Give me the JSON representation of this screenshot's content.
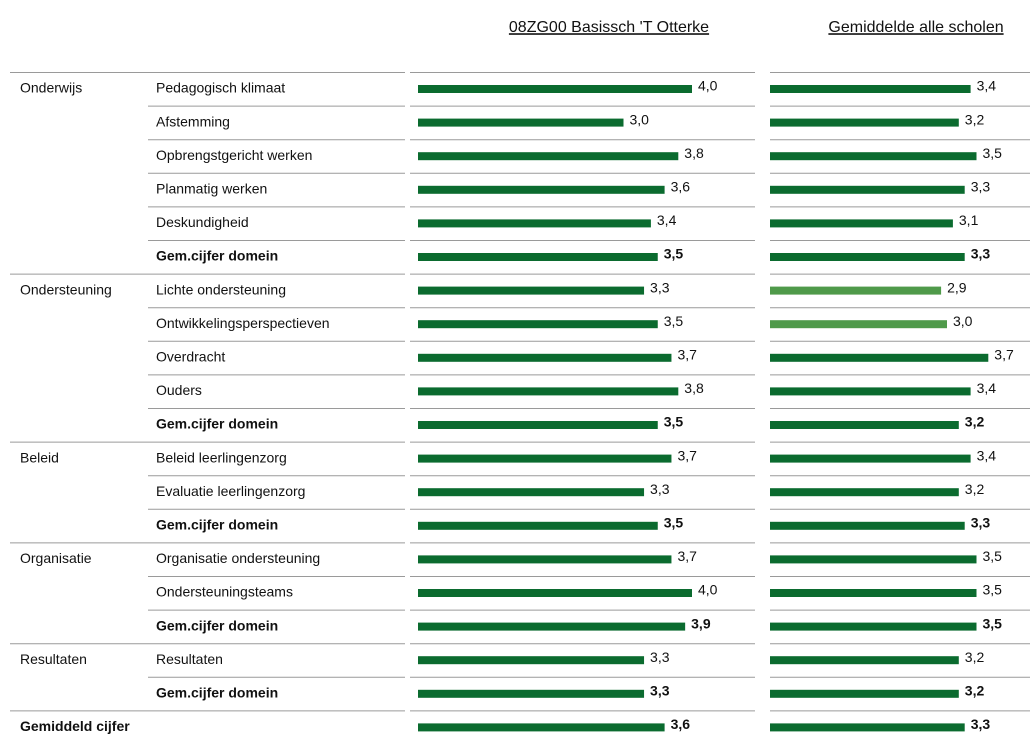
{
  "header": {
    "school_title": "08ZG00 Basissch 'T Otterke",
    "average_title": "Gemiddelde alle scholen"
  },
  "school_color": "#0b6b2f",
  "rows": [
    {
      "domain": "Onderwijs",
      "label": "Pedagogisch klimaat",
      "school": 4.0,
      "school_label": "4,0",
      "average": 3.4,
      "average_label": "3,4",
      "average_color": "#0b6b2f",
      "bold": false
    },
    {
      "domain": null,
      "label": "Afstemming",
      "school": 3.0,
      "school_label": "3,0",
      "average": 3.2,
      "average_label": "3,2",
      "average_color": "#0b6b2f",
      "bold": false
    },
    {
      "domain": null,
      "label": "Opbrengstgericht werken",
      "school": 3.8,
      "school_label": "3,8",
      "average": 3.5,
      "average_label": "3,5",
      "average_color": "#0b6b2f",
      "bold": false
    },
    {
      "domain": null,
      "label": "Planmatig werken",
      "school": 3.6,
      "school_label": "3,6",
      "average": 3.3,
      "average_label": "3,3",
      "average_color": "#0b6b2f",
      "bold": false
    },
    {
      "domain": null,
      "label": "Deskundigheid",
      "school": 3.4,
      "school_label": "3,4",
      "average": 3.1,
      "average_label": "3,1",
      "average_color": "#0b6b2f",
      "bold": false
    },
    {
      "domain": null,
      "label": "Gem.cijfer domein",
      "school": 3.5,
      "school_label": "3,5",
      "average": 3.3,
      "average_label": "3,3",
      "average_color": "#0b6b2f",
      "bold": true
    },
    {
      "domain": "Ondersteuning",
      "label": "Lichte ondersteuning",
      "school": 3.3,
      "school_label": "3,3",
      "average": 2.9,
      "average_label": "2,9",
      "average_color": "#4f9a4a",
      "bold": false
    },
    {
      "domain": null,
      "label": "Ontwikkelingsperspectieven",
      "school": 3.5,
      "school_label": "3,5",
      "average": 3.0,
      "average_label": "3,0",
      "average_color": "#4f9a4a",
      "bold": false
    },
    {
      "domain": null,
      "label": "Overdracht",
      "school": 3.7,
      "school_label": "3,7",
      "average": 3.7,
      "average_label": "3,7",
      "average_color": "#0b6b2f",
      "bold": false
    },
    {
      "domain": null,
      "label": "Ouders",
      "school": 3.8,
      "school_label": "3,8",
      "average": 3.4,
      "average_label": "3,4",
      "average_color": "#0b6b2f",
      "bold": false
    },
    {
      "domain": null,
      "label": "Gem.cijfer domein",
      "school": 3.5,
      "school_label": "3,5",
      "average": 3.2,
      "average_label": "3,2",
      "average_color": "#0b6b2f",
      "bold": true
    },
    {
      "domain": "Beleid",
      "label": "Beleid leerlingenzorg",
      "school": 3.7,
      "school_label": "3,7",
      "average": 3.4,
      "average_label": "3,4",
      "average_color": "#0b6b2f",
      "bold": false
    },
    {
      "domain": null,
      "label": "Evaluatie leerlingenzorg",
      "school": 3.3,
      "school_label": "3,3",
      "average": 3.2,
      "average_label": "3,2",
      "average_color": "#0b6b2f",
      "bold": false
    },
    {
      "domain": null,
      "label": "Gem.cijfer domein",
      "school": 3.5,
      "school_label": "3,5",
      "average": 3.3,
      "average_label": "3,3",
      "average_color": "#0b6b2f",
      "bold": true
    },
    {
      "domain": "Organisatie",
      "label": "Organisatie ondersteuning",
      "school": 3.7,
      "school_label": "3,7",
      "average": 3.5,
      "average_label": "3,5",
      "average_color": "#0b6b2f",
      "bold": false
    },
    {
      "domain": null,
      "label": "Ondersteuningsteams",
      "school": 4.0,
      "school_label": "4,0",
      "average": 3.5,
      "average_label": "3,5",
      "average_color": "#0b6b2f",
      "bold": false
    },
    {
      "domain": null,
      "label": "Gem.cijfer domein",
      "school": 3.9,
      "school_label": "3,9",
      "average": 3.5,
      "average_label": "3,5",
      "average_color": "#0b6b2f",
      "bold": true
    },
    {
      "domain": "Resultaten",
      "label": "Resultaten",
      "school": 3.3,
      "school_label": "3,3",
      "average": 3.2,
      "average_label": "3,2",
      "average_color": "#0b6b2f",
      "bold": false
    },
    {
      "domain": null,
      "label": "Gem.cijfer domein",
      "school": 3.3,
      "school_label": "3,3",
      "average": 3.2,
      "average_label": "3,2",
      "average_color": "#0b6b2f",
      "bold": true
    },
    {
      "domain": "Gemiddeld cijfer",
      "label": null,
      "school": 3.6,
      "school_label": "3,6",
      "average": 3.3,
      "average_label": "3,3",
      "average_color": "#0b6b2f",
      "bold": true
    }
  ]
}
